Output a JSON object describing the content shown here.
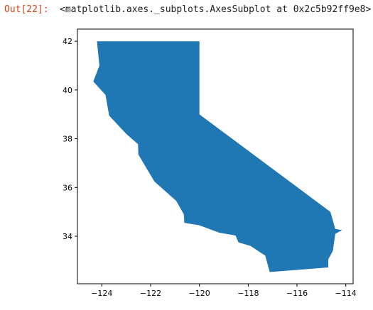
{
  "cell": {
    "out_prompt": "Out[22]:",
    "out_text": "<matplotlib.axes._subplots.AxesSubplot at 0x2c5b92ff9e8>"
  },
  "chart_data": {
    "type": "area",
    "title": "",
    "xlabel": "",
    "ylabel": "",
    "xlim": [
      -125.0,
      -113.7
    ],
    "ylim": [
      32.05,
      42.5
    ],
    "xticks": [
      -124,
      -122,
      -120,
      -118,
      -116,
      -114
    ],
    "yticks": [
      34,
      36,
      38,
      40,
      42
    ],
    "xtick_labels": [
      "−124",
      "−122",
      "−120",
      "−118",
      "−116",
      "−114"
    ],
    "ytick_labels": [
      "34",
      "36",
      "38",
      "40",
      "42"
    ],
    "grid": false,
    "fill_color": "#1f77b4",
    "series": [
      {
        "name": "",
        "polygon": [
          [
            -124.2,
            42.0
          ],
          [
            -120.0,
            42.0
          ],
          [
            -120.0,
            39.0
          ],
          [
            -114.63,
            35.0
          ],
          [
            -114.43,
            34.3
          ],
          [
            -114.15,
            34.25
          ],
          [
            -114.43,
            34.1
          ],
          [
            -114.53,
            33.4
          ],
          [
            -114.72,
            33.05
          ],
          [
            -114.72,
            32.72
          ],
          [
            -117.12,
            32.53
          ],
          [
            -117.3,
            33.2
          ],
          [
            -117.9,
            33.6
          ],
          [
            -118.4,
            33.75
          ],
          [
            -118.52,
            34.03
          ],
          [
            -119.2,
            34.15
          ],
          [
            -120.0,
            34.45
          ],
          [
            -120.62,
            34.55
          ],
          [
            -120.64,
            34.9
          ],
          [
            -120.95,
            35.45
          ],
          [
            -121.85,
            36.25
          ],
          [
            -122.5,
            37.35
          ],
          [
            -122.52,
            37.78
          ],
          [
            -123.0,
            38.2
          ],
          [
            -123.7,
            38.95
          ],
          [
            -123.85,
            39.8
          ],
          [
            -124.35,
            40.35
          ],
          [
            -124.1,
            41.0
          ],
          [
            -124.2,
            42.0
          ]
        ]
      }
    ]
  }
}
